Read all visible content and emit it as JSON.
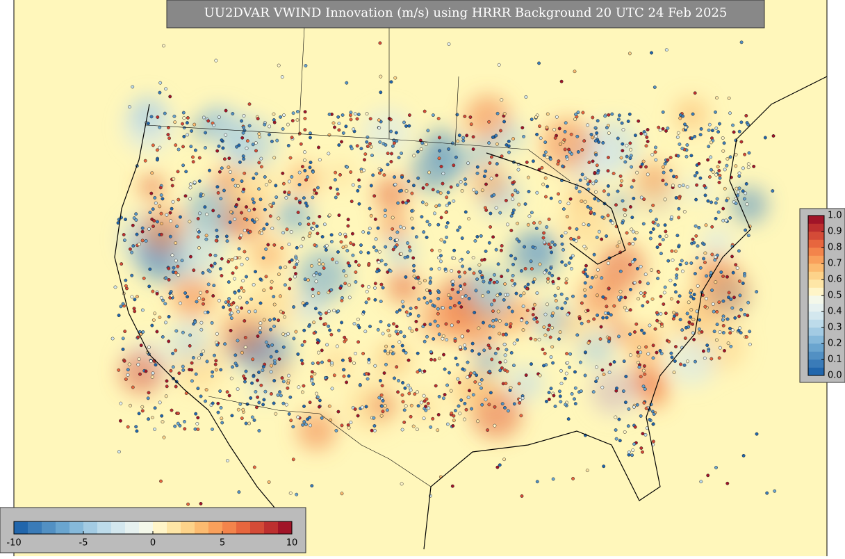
{
  "title": "UU2DVAR VWIND Innovation (m/s) using HRRR Background 20 UTC 24 Feb 2025",
  "colorbar_horizontal": {
    "lim": [
      -10,
      10
    ],
    "ticks": [
      -10,
      -5,
      0,
      5,
      10
    ],
    "colors": [
      "#2166ac",
      "#3a7bb8",
      "#5290c3",
      "#6aa5cf",
      "#86b9da",
      "#a3cbe3",
      "#bddbea",
      "#d3e7ee",
      "#e6f1f0",
      "#f4f8ea",
      "#fff5c8",
      "#fee6a6",
      "#fdd38a",
      "#fcbb70",
      "#f9a05b",
      "#f3844b",
      "#e7663e",
      "#d44b37",
      "#bd2f2f",
      "#a11428"
    ]
  },
  "colorbar_vertical": {
    "lim": [
      0,
      1
    ],
    "ticks": [
      {
        "value": 0,
        "label": "0.0"
      },
      {
        "value": 0.1,
        "label": "0.1"
      },
      {
        "value": 0.2,
        "label": "0.2"
      },
      {
        "value": 0.3,
        "label": "0.3"
      },
      {
        "value": 0.4,
        "label": "0.4"
      },
      {
        "value": 0.5,
        "label": "0.5"
      },
      {
        "value": 0.6,
        "label": "0.6"
      },
      {
        "value": 0.7,
        "label": "0.7"
      },
      {
        "value": 0.8,
        "label": "0.8"
      },
      {
        "value": 0.9,
        "label": "0.9"
      },
      {
        "value": 1,
        "label": "1.0"
      }
    ],
    "colors": [
      "#2166ac",
      "#3a7bb8",
      "#5290c3",
      "#6aa5cf",
      "#86b9da",
      "#a3cbe3",
      "#bddbea",
      "#d3e7ee",
      "#e6f1f0",
      "#f4f8ea",
      "#fff5c8",
      "#fee6a6",
      "#fdd38a",
      "#fcbb70",
      "#f9a05b",
      "#f3844b",
      "#e7663e",
      "#d44b37",
      "#bd2f2f",
      "#a11428"
    ]
  }
}
